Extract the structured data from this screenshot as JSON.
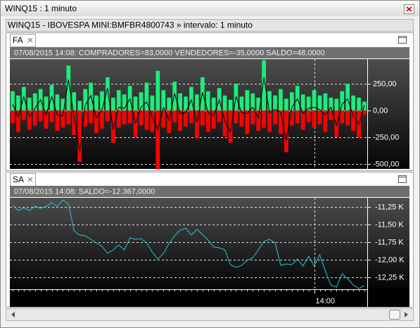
{
  "window": {
    "title": "WINQ15 : 1 minuto"
  },
  "header": "WINQ15 - IBOVESPA MINI:BMFBR4800743 » intervalo: 1 minuto",
  "chart_data": [
    {
      "type": "bar",
      "tab": "FA",
      "info": "07/08/2015 14:08:  COMPRADORES=83,0000  VENDEDORES=-35,0000  SALDO=48,0000",
      "series": [
        {
          "color": "#19ef7c",
          "values": [
            180,
            140,
            220,
            120,
            160,
            200,
            130,
            240,
            150,
            110,
            420,
            170,
            90,
            200,
            260,
            140,
            180,
            310,
            120,
            190,
            150,
            230,
            130,
            170,
            260,
            140,
            370,
            190,
            120,
            270,
            160,
            130,
            220,
            150,
            310,
            180,
            120,
            210,
            140,
            100,
            250,
            130,
            190,
            160,
            120,
            470,
            180,
            140,
            200,
            110,
            170,
            230,
            150,
            130,
            190,
            140,
            160,
            120,
            110,
            180,
            250,
            140,
            120,
            83
          ]
        },
        {
          "color": "#ff0000",
          "values": [
            -120,
            -200,
            -90,
            -180,
            -140,
            -100,
            -170,
            -110,
            -190,
            -160,
            -130,
            -230,
            -480,
            -150,
            -120,
            -210,
            -170,
            -100,
            -300,
            -160,
            -130,
            -120,
            -250,
            -140,
            -180,
            -200,
            -550,
            -160,
            -210,
            -110,
            -190,
            -150,
            -120,
            -260,
            -140,
            -200,
            -170,
            -110,
            -240,
            -300,
            -120,
            -150,
            -220,
            -130,
            -190,
            -160,
            -200,
            -130,
            -220,
            -390,
            -140,
            -120,
            -180,
            -110,
            -160,
            -130,
            -200,
            -90,
            -250,
            -120,
            -140,
            -190,
            -250,
            -35
          ]
        },
        {
          "color": "#000000",
          "type": "line",
          "values": [
            60,
            -60,
            130,
            -60,
            20,
            100,
            -40,
            130,
            -40,
            -50,
            290,
            -60,
            -390,
            50,
            140,
            -70,
            10,
            210,
            -180,
            30,
            20,
            110,
            -120,
            30,
            80,
            -60,
            -180,
            30,
            -90,
            160,
            -30,
            -20,
            100,
            -110,
            170,
            -20,
            -50,
            100,
            -100,
            -200,
            130,
            -20,
            -30,
            30,
            -70,
            310,
            -20,
            10,
            -20,
            -280,
            30,
            110,
            -30,
            20,
            30,
            10,
            -40,
            30,
            -140,
            60,
            110,
            -50,
            -130,
            48
          ]
        }
      ],
      "ylim": [
        -546,
        480
      ],
      "yticks": [
        {
          "value": 250,
          "label": "250,00"
        },
        {
          "value": 0,
          "label": "0,00"
        },
        {
          "value": -250,
          "label": "-250,00"
        },
        {
          "value": -500,
          "label": "-500,00"
        }
      ],
      "grid": true
    },
    {
      "type": "line",
      "tab": "SA",
      "info": "07/08/2015 14:08:  SALDO=-12.367,0000",
      "categories": [
        null,
        null,
        null,
        null,
        null,
        null,
        null,
        null,
        null,
        null,
        null,
        null,
        null,
        null,
        null,
        null,
        null,
        null,
        null,
        null,
        null,
        null,
        null,
        null,
        null,
        null,
        null,
        null,
        null,
        null,
        null,
        null,
        null,
        null,
        null,
        null,
        null,
        null,
        null,
        null,
        null,
        null,
        null,
        null,
        null,
        null,
        null,
        null,
        null,
        null,
        null,
        null,
        null,
        null,
        "14:00",
        null,
        null,
        null,
        null,
        null,
        null,
        null,
        null,
        null
      ],
      "series": [
        {
          "color": "#22c8d8",
          "values": [
            -11230,
            -11300,
            -11260,
            -11300,
            -11240,
            -11270,
            -11240,
            -11190,
            -11240,
            -11150,
            -11210,
            -11590,
            -11650,
            -11660,
            -11710,
            -11760,
            -11810,
            -11910,
            -11860,
            -11790,
            -11860,
            -11690,
            -11710,
            -11700,
            -11760,
            -11890,
            -11990,
            -11910,
            -11770,
            -11660,
            -11580,
            -11550,
            -11650,
            -11570,
            -11640,
            -11720,
            -11820,
            -11830,
            -11860,
            -12070,
            -12110,
            -12080,
            -12010,
            -11970,
            -11860,
            -11740,
            -11710,
            -11760,
            -12080,
            -12060,
            -12070,
            -11990,
            -12090,
            -11950,
            -12090,
            -11930,
            -12160,
            -12360,
            -12390,
            -12200,
            -12270,
            -12360,
            -12410,
            -12367
          ]
        }
      ],
      "ylim": [
        -12410,
        -11120
      ],
      "yticks": [
        {
          "value": -11250,
          "label": "-11,25 K"
        },
        {
          "value": -11500,
          "label": "-11,50 K"
        },
        {
          "value": -11750,
          "label": "-11,75 K"
        },
        {
          "value": -12000,
          "label": "-12,00 K"
        },
        {
          "value": -12250,
          "label": "-12,25 K"
        }
      ],
      "grid": true
    }
  ]
}
